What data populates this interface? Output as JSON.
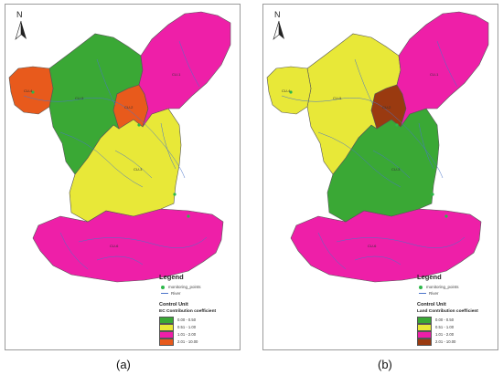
{
  "panels": [
    {
      "caption": "(a)",
      "north_label": "N",
      "legend": {
        "title": "Legend",
        "point_label": "monitoring_points",
        "river_label": "River",
        "unit_title": "Control Unit",
        "coef_title": "EC Contribution coefficient",
        "classes": [
          {
            "label": "0.00 - 0.50",
            "color": "#3aa835"
          },
          {
            "label": "0.51 - 1.00",
            "color": "#e8e838"
          },
          {
            "label": "1.01 - 2.00",
            "color": "#ee1fa8"
          },
          {
            "label": "2.01 - 10.00",
            "color": "#e85a1c"
          }
        ]
      },
      "units": [
        {
          "label": "CU-1",
          "class": "1.01 - 2.00"
        },
        {
          "label": "CU-2",
          "class": "2.01 - 10.00"
        },
        {
          "label": "CU-3",
          "class": "0.51 - 1.00"
        },
        {
          "label": "CU-4",
          "class": "2.01 - 10.00"
        },
        {
          "label": "CU-5",
          "class": "0.00 - 0.50"
        },
        {
          "label": "CU-6",
          "class": "1.01 - 2.00"
        }
      ]
    },
    {
      "caption": "(b)",
      "north_label": "N",
      "legend": {
        "title": "Legend",
        "point_label": "monitoring_points",
        "river_label": "River",
        "unit_title": "Control Unit",
        "coef_title": "Land Contribution coefficient",
        "classes": [
          {
            "label": "0.00 - 0.50",
            "color": "#3aa835"
          },
          {
            "label": "0.51 - 1.00",
            "color": "#e8e838"
          },
          {
            "label": "1.01 - 2.00",
            "color": "#ee1fa8"
          },
          {
            "label": "2.01 - 10.00",
            "color": "#9a3a10"
          }
        ]
      },
      "units": [
        {
          "label": "CU-1",
          "class": "1.01 - 2.00"
        },
        {
          "label": "CU-2",
          "class": "2.01 - 10.00"
        },
        {
          "label": "CU-3",
          "class": "0.00 - 0.50"
        },
        {
          "label": "CU-4",
          "class": "0.51 - 1.00"
        },
        {
          "label": "CU-5",
          "class": "0.51 - 1.00"
        },
        {
          "label": "CU-6",
          "class": "1.01 - 2.00"
        }
      ]
    }
  ],
  "colors": {
    "river": "#4a74c9",
    "border": "#555555",
    "point": "#2db84a"
  }
}
